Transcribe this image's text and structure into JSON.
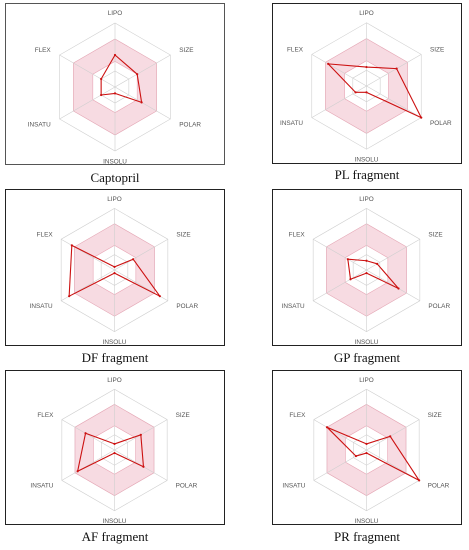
{
  "chart_data": [
    {
      "type": "radar",
      "title": "Captopril",
      "axes": [
        "LIPO",
        "SIZE",
        "POLAR",
        "INSOLU",
        "INSATU",
        "FLEX"
      ],
      "range": [
        0,
        1
      ],
      "optimal_range": [
        0.4,
        0.75
      ],
      "series": [
        {
          "values": [
            0.5,
            0.4,
            0.48,
            0.1,
            0.25,
            0.25
          ]
        }
      ]
    },
    {
      "type": "radar",
      "title": "PL fragment",
      "axes": [
        "LIPO",
        "SIZE",
        "POLAR",
        "INSOLU",
        "INSATU",
        "FLEX"
      ],
      "range": [
        0,
        1
      ],
      "optimal_range": [
        0.4,
        0.75
      ],
      "series": [
        {
          "values": [
            0.3,
            0.55,
            1.0,
            0.1,
            0.2,
            0.7
          ]
        }
      ]
    },
    {
      "type": "radar",
      "title": "DF fragment",
      "axes": [
        "LIPO",
        "SIZE",
        "POLAR",
        "INSOLU",
        "INSATU",
        "FLEX"
      ],
      "range": [
        0,
        1
      ],
      "optimal_range": [
        0.4,
        0.75
      ],
      "series": [
        {
          "values": [
            0.05,
            0.35,
            0.85,
            0.05,
            0.85,
            0.8
          ]
        }
      ]
    },
    {
      "type": "radar",
      "title": "GP fragment",
      "axes": [
        "LIPO",
        "SIZE",
        "POLAR",
        "INSOLU",
        "INSATU",
        "FLEX"
      ],
      "range": [
        0,
        1
      ],
      "optimal_range": [
        0.4,
        0.75
      ],
      "series": [
        {
          "values": [
            0.15,
            0.2,
            0.6,
            0.05,
            0.3,
            0.35
          ]
        }
      ]
    },
    {
      "type": "radar",
      "title": "AF fragment",
      "axes": [
        "LIPO",
        "SIZE",
        "POLAR",
        "INSOLU",
        "INSATU",
        "FLEX"
      ],
      "range": [
        0,
        1
      ],
      "optimal_range": [
        0.4,
        0.75
      ],
      "series": [
        {
          "values": [
            0.1,
            0.5,
            0.55,
            0.05,
            0.7,
            0.55
          ]
        }
      ]
    },
    {
      "type": "radar",
      "title": "PR fragment",
      "axes": [
        "LIPO",
        "SIZE",
        "POLAR",
        "INSOLU",
        "INSATU",
        "FLEX"
      ],
      "range": [
        0,
        1
      ],
      "optimal_range": [
        0.4,
        0.75
      ],
      "series": [
        {
          "values": [
            0.1,
            0.45,
            1.0,
            0.05,
            0.2,
            0.75
          ]
        }
      ]
    }
  ],
  "colors": {
    "series_line": "#cc1111",
    "optimal_fill": "#f7dbe2",
    "optimal_stroke": "#e8a7b6",
    "grid": "#cfcfcf",
    "axis_label": "#555555"
  }
}
